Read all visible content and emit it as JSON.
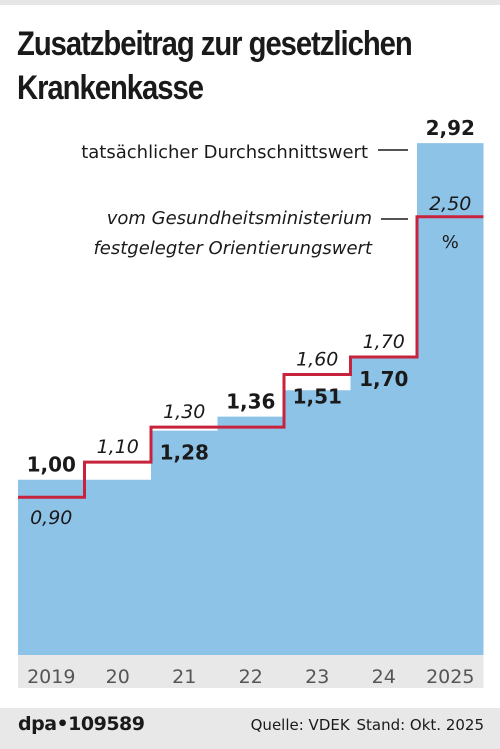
{
  "title_lines": [
    "Zusatzbeitrag zur gesetzlichen",
    "Krankenkasse"
  ],
  "chart_data": {
    "type": "area",
    "categories": [
      "2019",
      "20",
      "21",
      "22",
      "23",
      "24",
      "2025"
    ],
    "series": [
      {
        "name": "tatsächlicher Durchschnittswert",
        "values": [
          1.0,
          1.0,
          1.28,
          1.36,
          1.51,
          1.7,
          2.92
        ],
        "labels": [
          "1,00",
          "",
          "1,28",
          "1,36",
          "1,51",
          "1,70",
          "2,92"
        ],
        "color": "#8ec3e8"
      },
      {
        "name_lines": [
          "vom Gesundheitsministerium",
          "festgelegter Orientierungswert"
        ],
        "values": [
          0.9,
          1.1,
          1.3,
          1.3,
          1.6,
          1.7,
          2.5
        ],
        "labels": [
          "0,90",
          "1,10",
          "1,30",
          "",
          "1,60",
          "1,70",
          "2,50"
        ],
        "color": "#c8233c"
      }
    ],
    "unit": "%",
    "ylim": [
      0,
      2.92
    ],
    "grid": false,
    "axis_band_color": "#e8e8e8",
    "colors": {
      "area": "#8ec3e8",
      "line": "#c8233c",
      "text": "#1a1a1a"
    }
  },
  "footer": {
    "agency": "dpa•109589",
    "source": "Quelle: VDEK",
    "stand": "Stand: Okt. 2025"
  }
}
